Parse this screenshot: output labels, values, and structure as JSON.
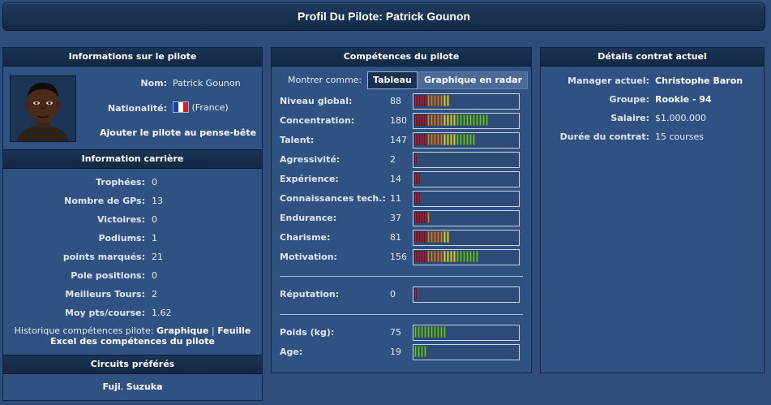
{
  "title": "Profil Du Pilote: Patrick Gounon",
  "pilot_info": {
    "header": "Informations sur le pilote",
    "name_label": "Nom:",
    "name": "Patrick Gounon",
    "nationality_label": "Nationalité:",
    "nationality": "(France)",
    "add_link": "Ajouter le pilote au pense-bête"
  },
  "career": {
    "header": "Information carrière",
    "rows": [
      {
        "label": "Trophées:",
        "value": "0"
      },
      {
        "label": "Nombre de GPs:",
        "value": "13"
      },
      {
        "label": "Victoires:",
        "value": "0"
      },
      {
        "label": "Podiums:",
        "value": "1"
      },
      {
        "label": "points marqués:",
        "value": "21"
      },
      {
        "label": "Pole positions:",
        "value": "0"
      },
      {
        "label": "Meilleurs Tours:",
        "value": "2"
      },
      {
        "label": "Moy pts/course:",
        "value": "1.62"
      }
    ],
    "history_prefix": "Historique compétences pilote:",
    "history_link1": "Graphique",
    "history_sep": "|",
    "history_link2a": "Feuille",
    "history_link2b": "Excel des compétences du pilote"
  },
  "circuits": {
    "header": "Circuits préférés",
    "value1": "Fuji",
    "sep": ",",
    "value2": "Suzuka"
  },
  "skills": {
    "header": "Compétences du pilote",
    "show_as": "Montrer comme:",
    "btn_table": "Tableau",
    "btn_radar": "Graphique en radar",
    "rows": [
      {
        "label": "Niveau global:",
        "value": "88",
        "level": 11
      },
      {
        "label": "Concentration:",
        "value": "180",
        "level": 23
      },
      {
        "label": "Talent:",
        "value": "147",
        "level": 19
      },
      {
        "label": "Agressivité:",
        "value": "2",
        "level": 1
      },
      {
        "label": "Expérience:",
        "value": "14",
        "level": 2
      },
      {
        "label": "Connaissances tech.:",
        "value": "11",
        "level": 2
      },
      {
        "label": "Endurance:",
        "value": "37",
        "level": 5
      },
      {
        "label": "Charisme:",
        "value": "81",
        "level": 11
      },
      {
        "label": "Motivation:",
        "value": "156",
        "level": 20
      }
    ],
    "reputation": {
      "label": "Réputation:",
      "value": "0",
      "level": 1
    },
    "physical": [
      {
        "label": "Poids (kg):",
        "value": "75",
        "level": 10
      },
      {
        "label": "Age:",
        "value": "19",
        "level": 4
      }
    ],
    "colors": {
      "red": "#d41414",
      "orange": "#e57a12",
      "yellow": "#e8d21a",
      "green": "#6cc21a"
    }
  },
  "contract": {
    "header": "Détails contrat actuel",
    "rows": [
      {
        "label": "Manager actuel:",
        "value": "Christophe Baron",
        "bold": true
      },
      {
        "label": "Groupe:",
        "value": "Rookie - 94",
        "bold": true
      },
      {
        "label": "Salaire:",
        "value": "$1.000.000",
        "bold": false
      },
      {
        "label": "Durée du contrat:",
        "value": "15 courses",
        "bold": false
      }
    ]
  }
}
